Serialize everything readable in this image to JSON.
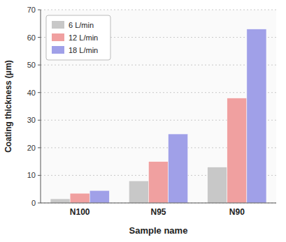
{
  "chart_data": {
    "type": "bar",
    "categories": [
      "N100",
      "N95",
      "N90"
    ],
    "series": [
      {
        "name": "6 L/min",
        "color": "#c8c8c8",
        "values": [
          1.5,
          8.0,
          13.0
        ]
      },
      {
        "name": "12 L/min",
        "color": "#f0a0a0",
        "values": [
          3.5,
          15.0,
          38.0
        ]
      },
      {
        "name": "18 L/min",
        "color": "#a0a0e8",
        "values": [
          4.5,
          25.0,
          63.0
        ]
      }
    ],
    "xlabel": "Sample name",
    "ylabel": "Coating thickness (μm)",
    "ylim": [
      0,
      70
    ],
    "yticks": [
      0,
      10,
      20,
      30,
      40,
      50,
      60,
      70
    ],
    "grid": true,
    "legend": "upper-left"
  }
}
